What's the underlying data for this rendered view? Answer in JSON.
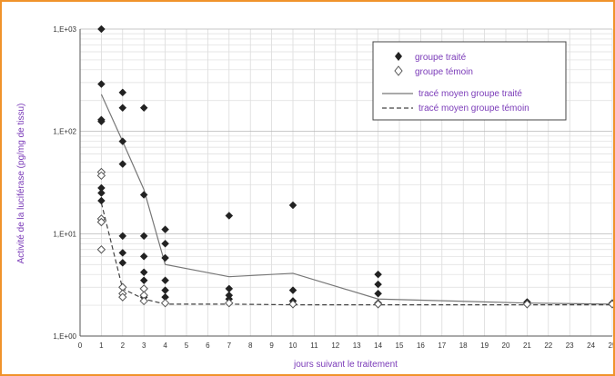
{
  "chart_data": {
    "type": "scatter",
    "title": "",
    "xlabel": "jours suivant le traitement",
    "ylabel": "Activité de la luciférase (pg/mg de tissu)",
    "xlim": [
      0,
      25
    ],
    "ylim": [
      1,
      1000
    ],
    "y_scale": "log",
    "grid": true,
    "legend_position": "top-right",
    "x_ticks": [
      "0",
      "1",
      "2",
      "3",
      "4",
      "5",
      "6",
      "7",
      "8",
      "9",
      "10",
      "11",
      "12",
      "13",
      "14",
      "15",
      "16",
      "17",
      "18",
      "19",
      "20",
      "21",
      "22",
      "23",
      "24",
      "25"
    ],
    "y_ticks": [
      "1,E+00",
      "1,E+01",
      "1,E+02",
      "1,E+03"
    ],
    "legend": {
      "treated": "groupe traité",
      "control": "groupe témoin",
      "treated_mean": "tracé moyen groupe traité",
      "control_mean": "tracé moyen groupe témoin"
    },
    "series": [
      {
        "key": "treated",
        "marker": "filled-diamond",
        "color": "#222222",
        "points": [
          [
            1,
            1000
          ],
          [
            1,
            290
          ],
          [
            1,
            130
          ],
          [
            1,
            125
          ],
          [
            1,
            28
          ],
          [
            1,
            25
          ],
          [
            1,
            21
          ],
          [
            2,
            240
          ],
          [
            2,
            170
          ],
          [
            2,
            80
          ],
          [
            2,
            48
          ],
          [
            2,
            9.5
          ],
          [
            2,
            6.5
          ],
          [
            2,
            5.2
          ],
          [
            3,
            170
          ],
          [
            3,
            24
          ],
          [
            3,
            9.5
          ],
          [
            3,
            6
          ],
          [
            3,
            4.2
          ],
          [
            3,
            3.5
          ],
          [
            3,
            2.4
          ],
          [
            4,
            11
          ],
          [
            4,
            8
          ],
          [
            4,
            5.8
          ],
          [
            4,
            3.5
          ],
          [
            4,
            2.8
          ],
          [
            4,
            2.4
          ],
          [
            4,
            2.1
          ],
          [
            7,
            15
          ],
          [
            7,
            2.9
          ],
          [
            7,
            2.5
          ],
          [
            7,
            2.3
          ],
          [
            10,
            19
          ],
          [
            10,
            2.8
          ],
          [
            10,
            2.2
          ],
          [
            14,
            4
          ],
          [
            14,
            3.2
          ],
          [
            14,
            2.6
          ],
          [
            14,
            2.1
          ],
          [
            21,
            2.15
          ],
          [
            25,
            2.1
          ]
        ]
      },
      {
        "key": "control",
        "marker": "open-diamond",
        "color": "#555555",
        "points": [
          [
            1,
            40
          ],
          [
            1,
            37
          ],
          [
            1,
            14
          ],
          [
            1,
            13
          ],
          [
            1,
            7
          ],
          [
            2,
            3
          ],
          [
            2,
            2.6
          ],
          [
            2,
            2.4
          ],
          [
            3,
            2.9
          ],
          [
            3,
            2.5
          ],
          [
            3,
            2.2
          ],
          [
            4,
            2.1
          ],
          [
            7,
            2.1
          ],
          [
            10,
            2.05
          ],
          [
            14,
            2.05
          ],
          [
            21,
            2.05
          ],
          [
            25,
            2.05
          ]
        ]
      },
      {
        "key": "treated_mean",
        "line": "solid",
        "color": "#777777",
        "points": [
          [
            1,
            230
          ],
          [
            2,
            80
          ],
          [
            3,
            27
          ],
          [
            4,
            5
          ],
          [
            7,
            3.8
          ],
          [
            10,
            4.1
          ],
          [
            14,
            2.3
          ],
          [
            21,
            2.1
          ],
          [
            25,
            2.05
          ]
        ]
      },
      {
        "key": "control_mean",
        "line": "dashed",
        "color": "#444444",
        "points": [
          [
            1,
            20
          ],
          [
            2,
            2.9
          ],
          [
            3,
            2.3
          ],
          [
            4,
            2.05
          ],
          [
            7,
            2.05
          ],
          [
            10,
            2.02
          ],
          [
            14,
            2.02
          ],
          [
            21,
            2.02
          ],
          [
            25,
            2.02
          ]
        ]
      }
    ]
  }
}
